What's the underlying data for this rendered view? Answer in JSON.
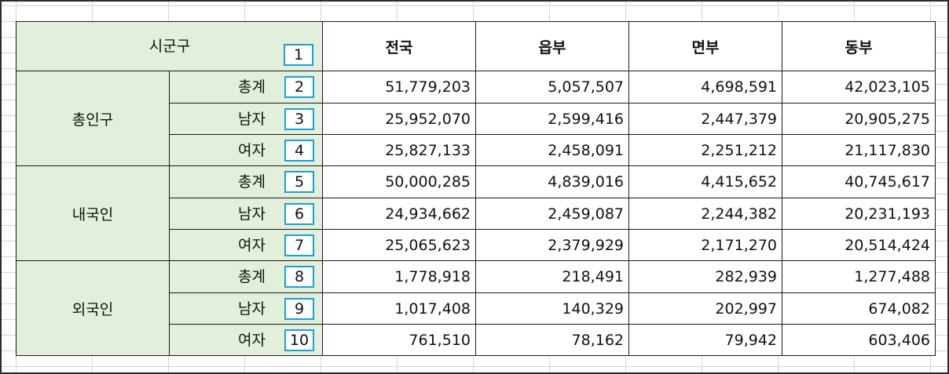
{
  "table": {
    "corner_label": "시군구",
    "corner_marker": "1",
    "columns": [
      "전국",
      "읍부",
      "면부",
      "동부"
    ],
    "groups": [
      {
        "label": "총인구",
        "rows": [
          {
            "label": "총계",
            "marker": "2",
            "values": [
              "51,779,203",
              "5,057,507",
              "4,698,591",
              "42,023,105"
            ]
          },
          {
            "label": "남자",
            "marker": "3",
            "values": [
              "25,952,070",
              "2,599,416",
              "2,447,379",
              "20,905,275"
            ]
          },
          {
            "label": "여자",
            "marker": "4",
            "values": [
              "25,827,133",
              "2,458,091",
              "2,251,212",
              "21,117,830"
            ]
          }
        ]
      },
      {
        "label": "내국인",
        "rows": [
          {
            "label": "총계",
            "marker": "5",
            "values": [
              "50,000,285",
              "4,839,016",
              "4,415,652",
              "40,745,617"
            ]
          },
          {
            "label": "남자",
            "marker": "6",
            "values": [
              "24,934,662",
              "2,459,087",
              "2,244,382",
              "20,231,193"
            ]
          },
          {
            "label": "여자",
            "marker": "7",
            "values": [
              "25,065,623",
              "2,379,929",
              "2,171,270",
              "20,514,424"
            ]
          }
        ]
      },
      {
        "label": "외국인",
        "rows": [
          {
            "label": "총계",
            "marker": "8",
            "values": [
              "1,778,918",
              "218,491",
              "282,939",
              "1,277,488"
            ]
          },
          {
            "label": "남자",
            "marker": "9",
            "values": [
              "1,017,408",
              "140,329",
              "202,997",
              "674,082"
            ]
          },
          {
            "label": "여자",
            "marker": "10",
            "values": [
              "761,510",
              "78,162",
              "79,942",
              "603,406"
            ]
          }
        ]
      }
    ]
  }
}
